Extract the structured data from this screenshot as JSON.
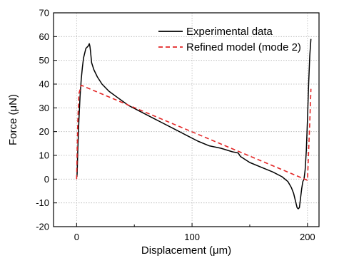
{
  "chart_data": {
    "type": "line",
    "title": "",
    "xlabel": "Displacement (μm)",
    "ylabel": "Force (μN)",
    "xlim": [
      -20,
      210
    ],
    "ylim": [
      -20,
      70
    ],
    "xticks": [
      0,
      100,
      200
    ],
    "yticks": [
      -20,
      -10,
      0,
      10,
      20,
      30,
      40,
      50,
      60,
      70
    ],
    "grid": true,
    "legend_position": "top-right",
    "series": [
      {
        "name": "Experimental data",
        "style": "solid",
        "color": "#000000",
        "x": [
          0.3,
          0.5,
          1,
          2,
          3,
          4,
          5,
          6,
          7,
          8,
          9,
          10,
          11,
          11.5,
          12,
          13,
          15,
          18,
          22,
          28,
          35,
          45,
          55,
          65,
          75,
          85,
          95,
          105,
          115,
          125,
          135,
          140,
          142,
          150,
          160,
          170,
          178,
          183,
          186,
          188,
          190,
          191,
          192,
          193,
          194,
          195,
          196,
          197,
          198,
          199,
          200,
          201,
          202,
          203
        ],
        "y": [
          1,
          3,
          12,
          25,
          35,
          42,
          47,
          51,
          53,
          55,
          55.5,
          56,
          57,
          56,
          54,
          49,
          46,
          43,
          40,
          37,
          34.5,
          31,
          28.5,
          26,
          23.5,
          21,
          18.5,
          16,
          14,
          13,
          11.5,
          11,
          9.5,
          7,
          5,
          3,
          1,
          -1,
          -3.5,
          -6,
          -10,
          -12,
          -12.5,
          -12,
          -8,
          -4,
          -1,
          0,
          4,
          12,
          25,
          40,
          52,
          59
        ]
      },
      {
        "name": "Refined model (mode 2)",
        "style": "dashed",
        "color": "#e32626",
        "x": [
          0,
          1,
          2,
          4,
          200,
          202,
          203
        ],
        "y": [
          0,
          24,
          36,
          39.5,
          -0.5,
          24,
          38
        ]
      }
    ]
  }
}
